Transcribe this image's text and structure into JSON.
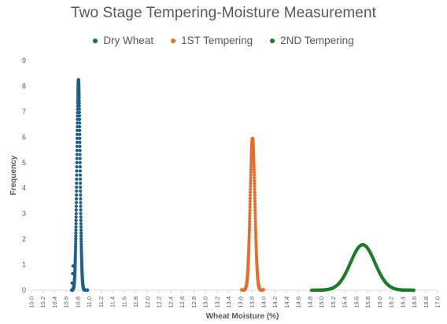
{
  "chart_data": {
    "type": "scatter",
    "title": "Two Stage Tempering-Moisture Measurement",
    "xlabel": "Wheat Moisture (%)",
    "ylabel": "Frequency",
    "xlim": [
      10.0,
      17.0
    ],
    "ylim": [
      0,
      9
    ],
    "x_ticks": [
      "10.0",
      "10.2",
      "10.4",
      "10.6",
      "10.8",
      "11.0",
      "11.2",
      "11.4",
      "11.6",
      "11.8",
      "12.0",
      "12.2",
      "12.4",
      "12.6",
      "12.8",
      "13.0",
      "13.2",
      "13.4",
      "13.6",
      "13.8",
      "14.0",
      "14.2",
      "14.4",
      "14.6",
      "14.8",
      "15.0",
      "15.2",
      "15.4",
      "15.6",
      "15.8",
      "16.0",
      "16.2",
      "16.4",
      "16.6",
      "16.8",
      "17.0"
    ],
    "y_ticks": [
      "0",
      "1",
      "2",
      "3",
      "4",
      "5",
      "6",
      "7",
      "8",
      "9"
    ],
    "grid": false,
    "legend_position": "top",
    "series": [
      {
        "name": "Dry Wheat",
        "color": "#1f5f86",
        "peak": 8.25,
        "mean": 10.81,
        "sd": 0.028,
        "x_min": 10.7,
        "x_max": 10.96,
        "points": [
          [
            10.7,
            0.28
          ],
          [
            10.71,
            0.65
          ],
          [
            10.715,
            0.95
          ],
          [
            10.96,
            0.01
          ],
          [
            10.965,
            0.0
          ]
        ]
      },
      {
        "name": "1ST Tempering",
        "color": "#e36f2c",
        "peak": 5.95,
        "mean": 13.81,
        "sd": 0.04,
        "x_min": 13.62,
        "x_max": 14.0,
        "points": [
          [
            13.62,
            0.02
          ],
          [
            14.0,
            0.02
          ]
        ]
      },
      {
        "name": "2ND Tempering",
        "color": "#207a2d",
        "peak": 1.78,
        "mean": 15.71,
        "sd": 0.21,
        "x_min": 14.95,
        "x_max": 16.55,
        "points": [
          [
            14.95,
            0.0
          ],
          [
            15.03,
            0.01
          ],
          [
            16.48,
            0.01
          ],
          [
            16.52,
            0.01
          ],
          [
            16.55,
            0.0
          ]
        ]
      }
    ]
  }
}
